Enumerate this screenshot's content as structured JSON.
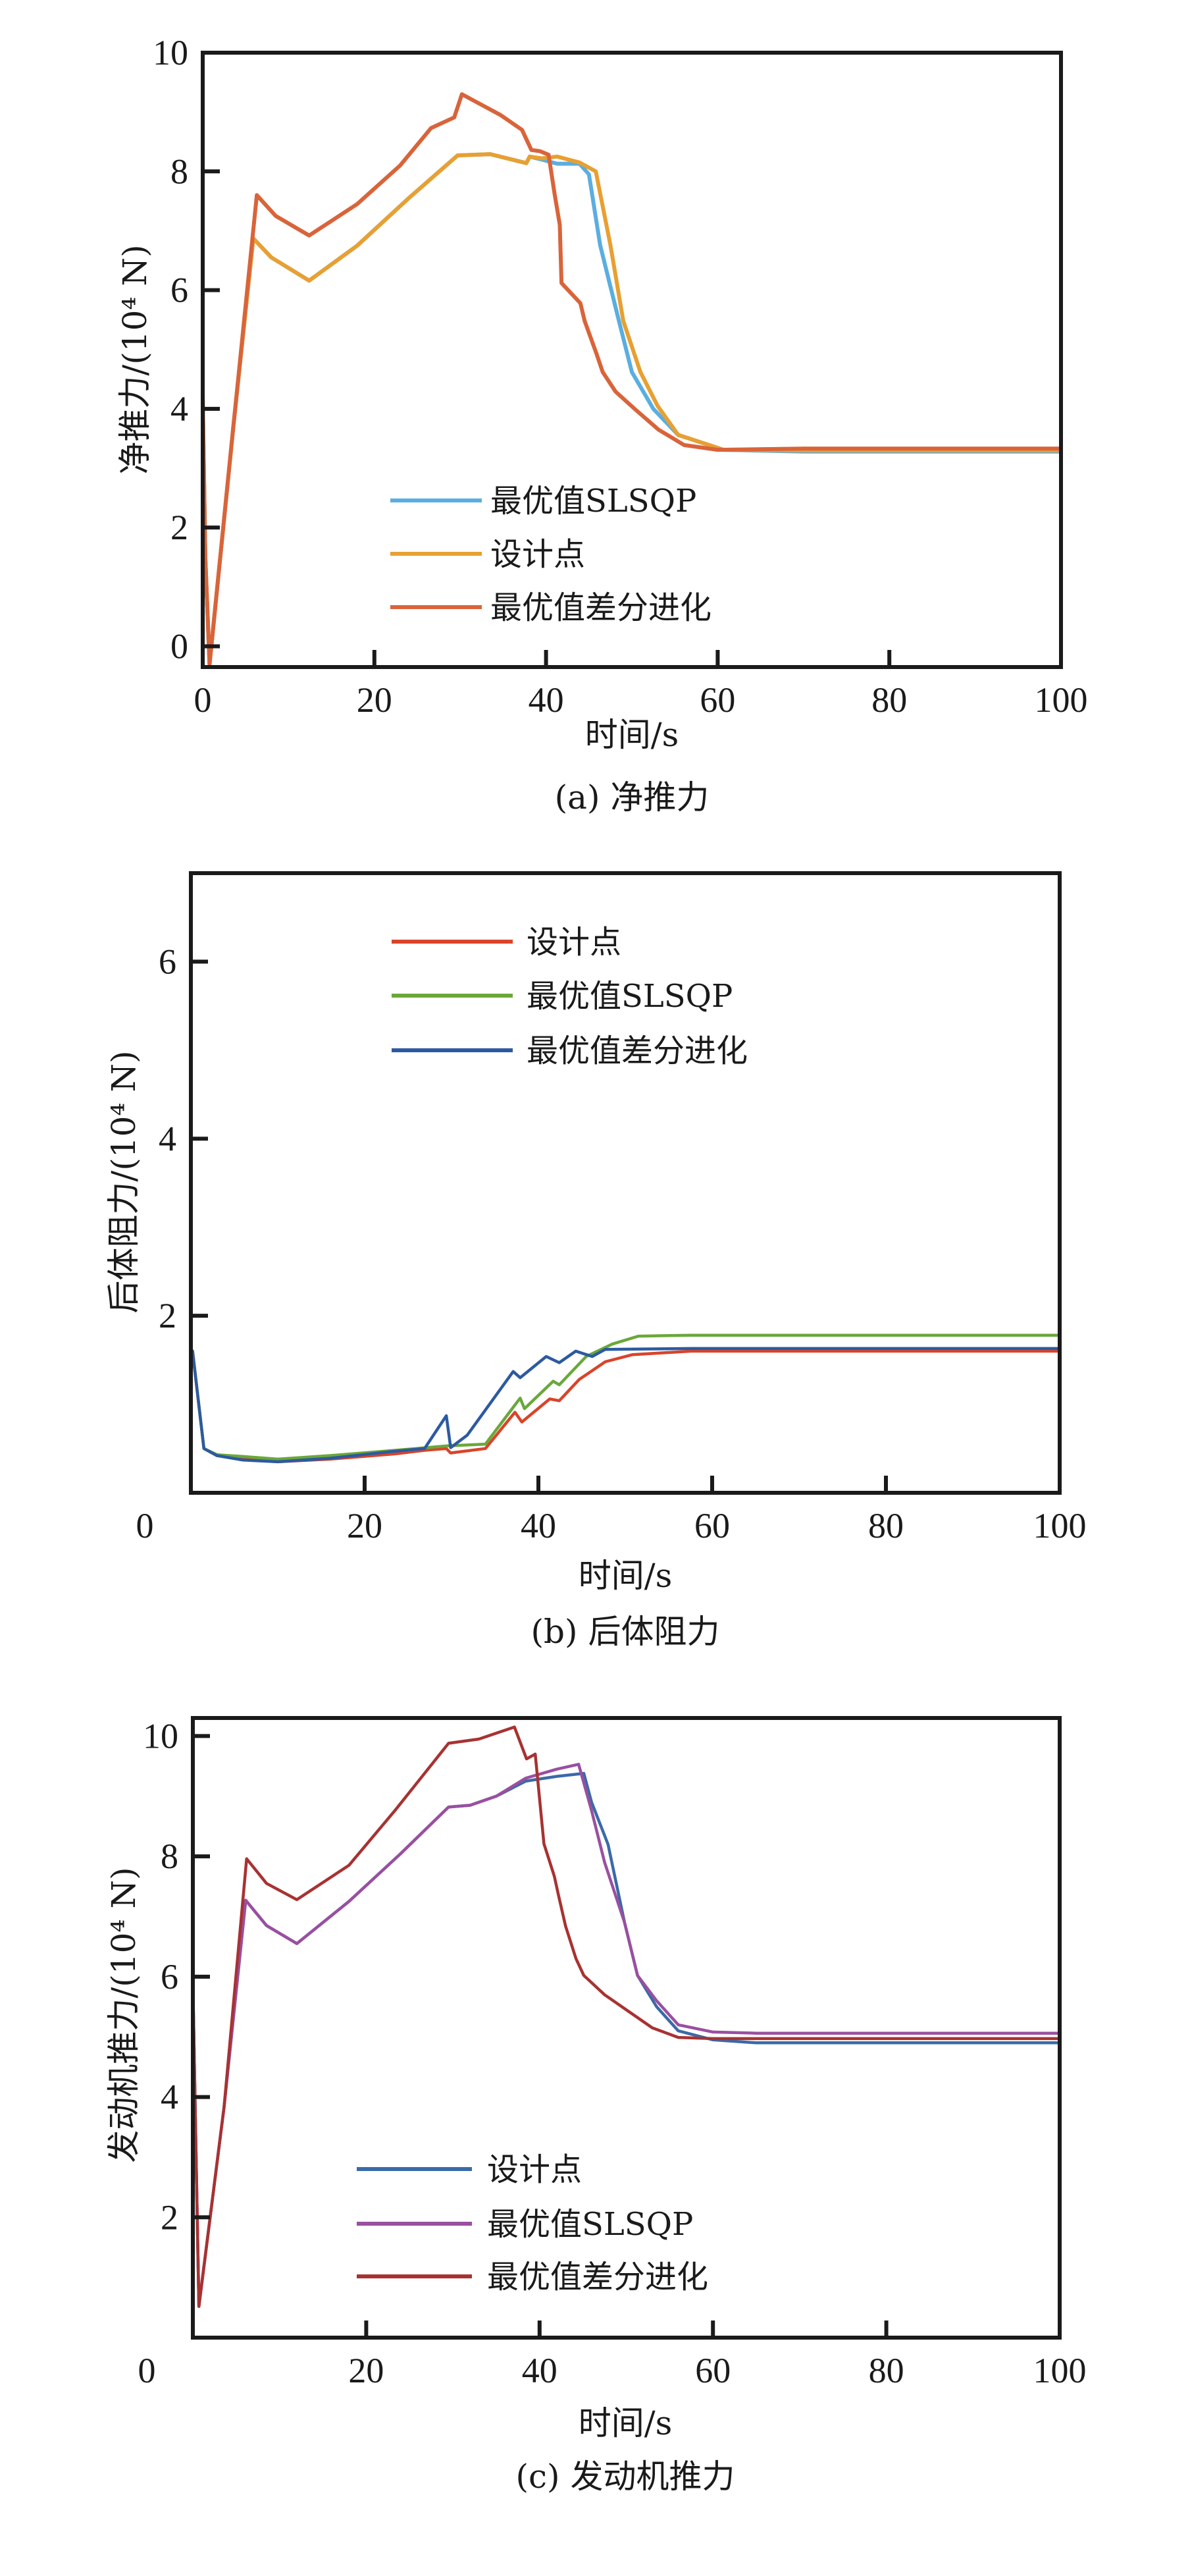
{
  "chart_data": [
    {
      "type": "line",
      "id": "a",
      "caption": "(a) 净推力",
      "xlabel": "时间/s",
      "ylabel": "净推力/(10⁴ N)",
      "xlim": [
        0,
        100
      ],
      "ylim": [
        -0.35,
        10
      ],
      "xticks": [
        0,
        20,
        40,
        60,
        80,
        100
      ],
      "yticks": [
        0,
        2,
        4,
        6,
        8,
        10
      ],
      "xtick_labels": [
        "0",
        "20",
        "40",
        "60",
        "80",
        "100"
      ],
      "ytick_labels": [
        "0",
        "2",
        "4",
        "6",
        "8",
        "10"
      ],
      "legend_position": "lower-center",
      "grid": false,
      "series": [
        {
          "name": "最优值SLSQP",
          "color": "#5aaee0",
          "x": [
            0,
            0.3,
            0.8,
            3.5,
            5.9,
            8,
            12.4,
            18,
            24,
            29.7,
            33.5,
            37.7,
            38.1,
            39.5,
            41.3,
            43.9,
            45,
            46.3,
            48.5,
            50,
            52.5,
            55.4,
            60.7,
            70,
            80,
            90,
            100
          ],
          "y": [
            4.2,
            1.5,
            -0.3,
            3.6,
            6.87,
            6.55,
            6.16,
            6.75,
            7.55,
            8.27,
            8.29,
            8.14,
            8.25,
            8.2,
            8.13,
            8.13,
            7.95,
            6.76,
            5.48,
            4.62,
            4.0,
            3.56,
            3.31,
            3.28,
            3.28,
            3.28,
            3.28
          ]
        },
        {
          "name": "设计点",
          "color": "#e8a032",
          "x": [
            0,
            0.3,
            0.8,
            3.5,
            5.9,
            8,
            12.4,
            18,
            24,
            29.7,
            33.5,
            37.7,
            38.1,
            39.5,
            41.3,
            43.9,
            45.8,
            47.5,
            49,
            51,
            53,
            55.4,
            60.7,
            70,
            80,
            90,
            100
          ],
          "y": [
            4.2,
            1.5,
            -0.3,
            3.6,
            6.87,
            6.55,
            6.16,
            6.75,
            7.55,
            8.27,
            8.29,
            8.14,
            8.25,
            8.22,
            8.25,
            8.15,
            8.0,
            6.76,
            5.48,
            4.62,
            4.05,
            3.56,
            3.31,
            3.3,
            3.3,
            3.3,
            3.3
          ]
        },
        {
          "name": "最优值差分进化",
          "color": "#d9643a",
          "x": [
            0,
            0.3,
            0.8,
            3.5,
            6.3,
            8.5,
            12.4,
            18,
            23,
            26.6,
            29.3,
            30.2,
            34.7,
            37.2,
            38.3,
            39.3,
            40.3,
            41.0,
            41.6,
            41.8,
            44,
            44.5,
            45.9,
            46.6,
            48.1,
            50.4,
            53.1,
            56.1,
            60,
            70,
            80,
            90,
            100
          ],
          "y": [
            4.2,
            1.5,
            -0.3,
            3.6,
            7.6,
            7.25,
            6.92,
            7.45,
            8.1,
            8.73,
            8.91,
            9.3,
            8.95,
            8.7,
            8.36,
            8.34,
            8.28,
            7.62,
            7.1,
            6.12,
            5.78,
            5.48,
            4.92,
            4.62,
            4.29,
            3.99,
            3.65,
            3.39,
            3.31,
            3.33,
            3.33,
            3.33,
            3.33
          ]
        }
      ]
    },
    {
      "type": "line",
      "id": "b",
      "caption": "(b) 后体阻力",
      "xlabel": "时间/s",
      "ylabel": "后体阻力/(10⁴ N)",
      "xlim": [
        0,
        100
      ],
      "ylim": [
        0,
        7
      ],
      "xticks": [
        0,
        20,
        40,
        60,
        80,
        100
      ],
      "yticks": [
        2,
        4,
        6
      ],
      "xtick_labels": [
        "0",
        "20",
        "40",
        "60",
        "80",
        "100"
      ],
      "ytick_labels": [
        "2",
        "4",
        "6"
      ],
      "legend_position": "upper-center",
      "grid": false,
      "series": [
        {
          "name": "设计点",
          "color": "#d9442a",
          "x": [
            0,
            0.2,
            1.5,
            3,
            6,
            10,
            16,
            23.5,
            26.9,
            29.4,
            29.9,
            33.9,
            37.3,
            38.1,
            41.3,
            42.4,
            44.7,
            47.7,
            50.8,
            57.6,
            70,
            80,
            90,
            100
          ],
          "y": [
            1.62,
            1.6,
            0.5,
            0.42,
            0.38,
            0.35,
            0.38,
            0.44,
            0.48,
            0.5,
            0.45,
            0.5,
            0.91,
            0.8,
            1.06,
            1.04,
            1.28,
            1.48,
            1.56,
            1.6,
            1.6,
            1.6,
            1.6,
            1.6
          ]
        },
        {
          "name": "最优值SLSQP",
          "color": "#6aa83a",
          "x": [
            0,
            0.2,
            1.5,
            3,
            6,
            10,
            16,
            23.5,
            29.5,
            33.9,
            37.9,
            38.4,
            41.7,
            42.4,
            45.5,
            48.5,
            51.5,
            57.6,
            70,
            80,
            90,
            100
          ],
          "y": [
            1.62,
            1.6,
            0.5,
            0.43,
            0.41,
            0.38,
            0.42,
            0.48,
            0.53,
            0.55,
            1.07,
            0.95,
            1.26,
            1.22,
            1.54,
            1.68,
            1.77,
            1.78,
            1.78,
            1.78,
            1.78,
            1.78
          ]
        },
        {
          "name": "最优值差分进化",
          "color": "#2c5aa0",
          "x": [
            0,
            0.2,
            1.5,
            3,
            6,
            10,
            16,
            23.5,
            26.9,
            29.4,
            29.9,
            31.8,
            37.1,
            37.9,
            40.9,
            42.4,
            44.3,
            46.2,
            47.7,
            57.6,
            70,
            80,
            90,
            100
          ],
          "y": [
            1.62,
            1.6,
            0.5,
            0.42,
            0.37,
            0.35,
            0.39,
            0.47,
            0.5,
            0.87,
            0.51,
            0.65,
            1.37,
            1.3,
            1.54,
            1.47,
            1.6,
            1.54,
            1.62,
            1.63,
            1.63,
            1.63,
            1.63,
            1.63
          ]
        }
      ]
    },
    {
      "type": "line",
      "id": "c",
      "caption": "(c) 发动机推力",
      "xlabel": "时间/s",
      "ylabel": "发动机推力/(10⁴ N)",
      "xlim": [
        0,
        100
      ],
      "ylim": [
        0,
        10.3
      ],
      "xticks": [
        0,
        20,
        40,
        60,
        80,
        100
      ],
      "yticks": [
        2,
        4,
        6,
        8,
        10
      ],
      "xtick_labels": [
        "0",
        "20",
        "40",
        "60",
        "80",
        "100"
      ],
      "ytick_labels": [
        "2",
        "4",
        "6",
        "8",
        "10"
      ],
      "legend_position": "lower-center",
      "grid": false,
      "series": [
        {
          "name": "设计点",
          "color": "#3a6aa8",
          "x": [
            0,
            0.7,
            3.6,
            6.1,
            8.5,
            12,
            18,
            24,
            29.5,
            32,
            35,
            38.4,
            42,
            45.1,
            46,
            47.9,
            49.8,
            51.3,
            53.5,
            56,
            60,
            65,
            70,
            80,
            90,
            100
          ],
          "y": [
            5.9,
            0.52,
            3.83,
            7.27,
            6.85,
            6.55,
            7.25,
            8.05,
            8.82,
            8.85,
            9.0,
            9.25,
            9.33,
            9.38,
            8.9,
            8.2,
            6.9,
            6.02,
            5.5,
            5.1,
            4.95,
            4.9,
            4.9,
            4.9,
            4.9,
            4.9
          ]
        },
        {
          "name": "最优值SLSQP",
          "color": "#9a4fa0",
          "x": [
            0,
            0.7,
            3.6,
            6.1,
            8.5,
            12,
            18,
            24,
            29.5,
            32,
            35,
            38.4,
            42,
            44.5,
            46,
            47.5,
            49.8,
            51.3,
            53.5,
            56,
            60,
            65,
            70,
            80,
            90,
            100
          ],
          "y": [
            5.9,
            0.52,
            3.83,
            7.27,
            6.85,
            6.55,
            7.25,
            8.05,
            8.82,
            8.85,
            9.0,
            9.3,
            9.45,
            9.53,
            8.76,
            7.9,
            6.9,
            6.02,
            5.6,
            5.2,
            5.08,
            5.06,
            5.06,
            5.06,
            5.06,
            5.06
          ]
        },
        {
          "name": "最优值差分进化",
          "color": "#a83232",
          "x": [
            0,
            0.7,
            3.6,
            6.2,
            8.5,
            12,
            18,
            23.3,
            29.5,
            33,
            37.1,
            38.5,
            39.5,
            40.5,
            41.7,
            42.2,
            43,
            44.2,
            45.1,
            47.5,
            50,
            53,
            56,
            60,
            70,
            80,
            90,
            100
          ],
          "y": [
            5.9,
            0.52,
            3.83,
            7.96,
            7.55,
            7.28,
            7.85,
            8.76,
            9.88,
            9.95,
            10.15,
            9.62,
            9.7,
            8.21,
            7.67,
            7.34,
            6.84,
            6.3,
            6.02,
            5.7,
            5.45,
            5.15,
            4.99,
            4.97,
            4.97,
            4.97,
            4.97,
            4.97
          ]
        }
      ]
    }
  ]
}
